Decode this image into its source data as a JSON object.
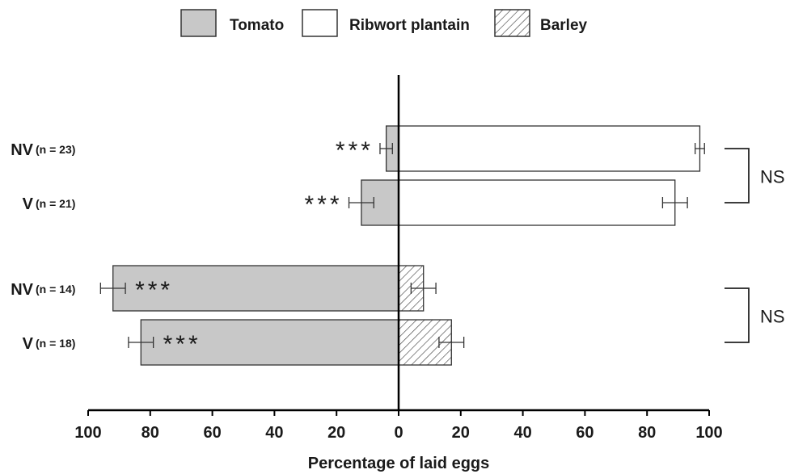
{
  "chart_data": {
    "type": "bar",
    "orientation": "horizontal-diverging",
    "xlabel": "Percentage of laid eggs",
    "xlim_left": [
      100,
      0
    ],
    "xlim_right": [
      0,
      100
    ],
    "tick_labels": [
      "100",
      "80",
      "60",
      "40",
      "20",
      "0",
      "20",
      "40",
      "60",
      "80",
      "100"
    ],
    "legend": {
      "placement": "top",
      "entries": [
        {
          "name": "Tomato",
          "pattern": "solid-gray"
        },
        {
          "name": "Ribwort plantain",
          "pattern": "white"
        },
        {
          "name": "Barley",
          "pattern": "hatched"
        }
      ]
    },
    "rows": [
      {
        "group": "NV",
        "n": "(n = 23)",
        "left_series": "Tomato",
        "left": 4,
        "left_err": 2,
        "right_series": "Ribwort plantain",
        "right": 97,
        "right_err": 1.5,
        "sig": "***",
        "sig_side": "outside"
      },
      {
        "group": "V",
        "n": "(n = 21)",
        "left_series": "Tomato",
        "left": 12,
        "left_err": 4,
        "right_series": "Ribwort plantain",
        "right": 89,
        "right_err": 4,
        "sig": "***",
        "sig_side": "outside"
      },
      {
        "group": "NV",
        "n": "(n = 14)",
        "left_series": "Tomato",
        "left": 92,
        "left_err": 4,
        "right_series": "Barley",
        "right": 8,
        "right_err": 4,
        "sig": "***",
        "sig_side": "inside"
      },
      {
        "group": "V",
        "n": "(n = 18)",
        "left_series": "Tomato",
        "left": 83,
        "left_err": 4,
        "right_series": "Barley",
        "right": 17,
        "right_err": 4,
        "sig": "***",
        "sig_side": "inside"
      }
    ],
    "brackets": [
      {
        "rows": [
          0,
          1
        ],
        "label": "NS"
      },
      {
        "rows": [
          2,
          3
        ],
        "label": "NS"
      }
    ],
    "colors": {
      "tomato": "#c8c8c8",
      "plantain": "#ffffff",
      "barley_hatch": "#444444",
      "outline": "#333333"
    }
  }
}
